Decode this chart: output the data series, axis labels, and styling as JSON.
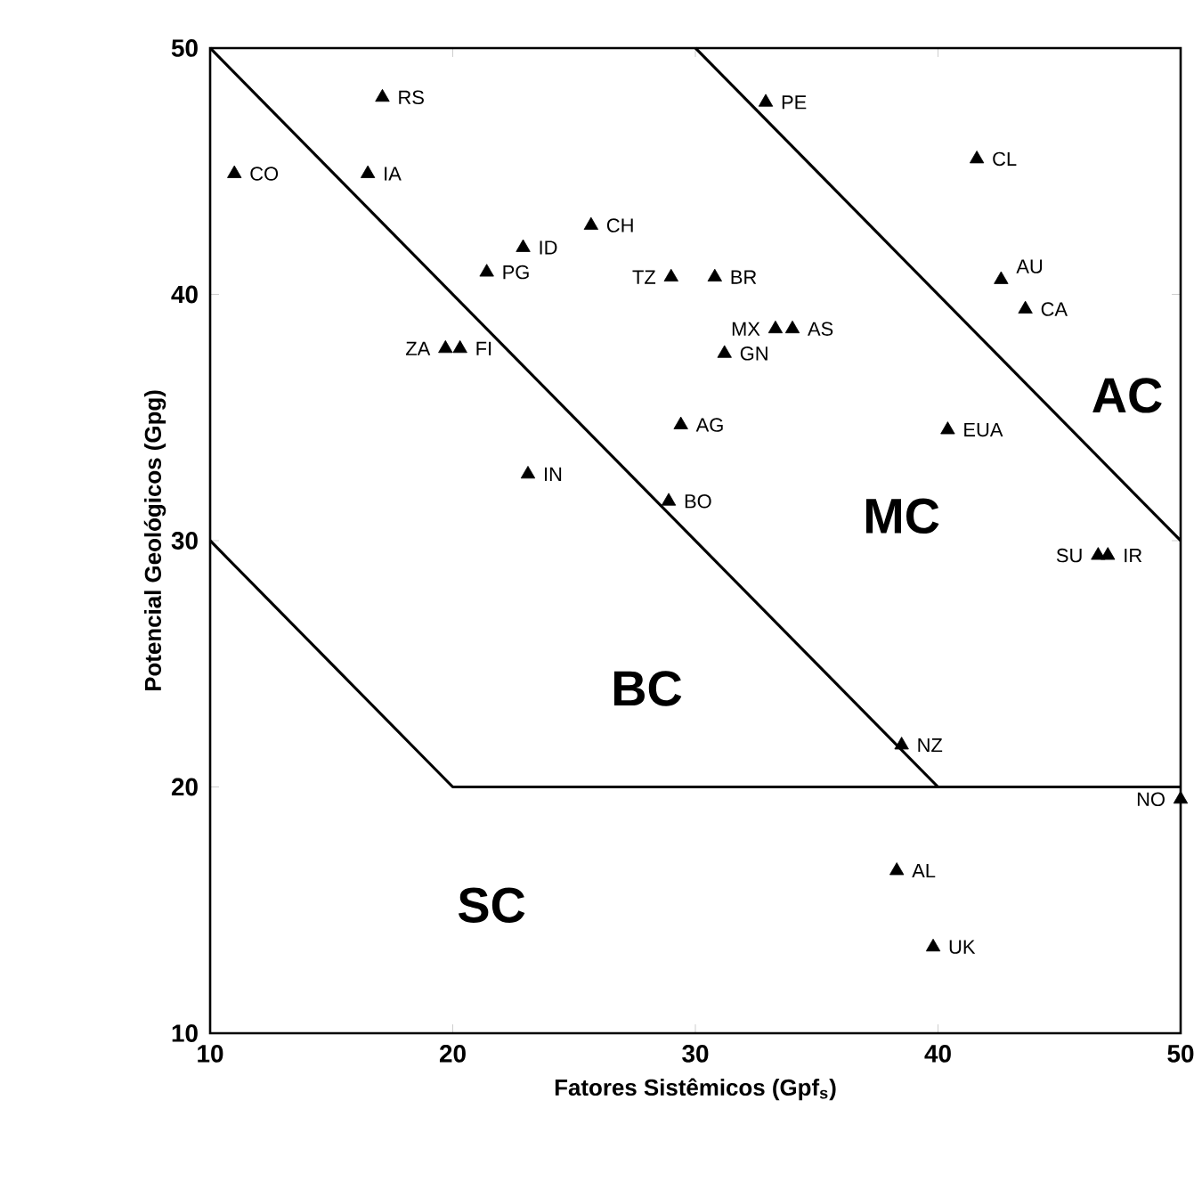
{
  "chart_data": {
    "type": "scatter",
    "xlabel": "Fatores Sistêmicos (Gpf$_{s}$)",
    "ylabel": "Potencial Geológicos (Gpg)",
    "xlim": [
      10,
      50
    ],
    "ylim": [
      10,
      50
    ],
    "xticks": [
      10,
      20,
      30,
      40,
      50
    ],
    "yticks": [
      10,
      20,
      30,
      40,
      50
    ],
    "grid": false,
    "series": [
      {
        "color": "#000000",
        "marker": "triangle",
        "x": [
          17.1,
          11.0,
          16.5,
          25.7,
          22.9,
          21.4,
          29.0,
          30.8,
          33.3,
          34.0,
          31.2,
          19.7,
          20.3,
          29.4,
          23.1,
          28.9,
          32.9,
          41.6,
          42.6,
          43.6,
          40.4,
          46.6,
          47.0,
          38.5,
          50.0,
          38.3,
          39.8
        ],
        "values": [
          48.0,
          44.9,
          44.9,
          42.8,
          41.9,
          40.9,
          40.7,
          40.7,
          38.6,
          38.6,
          37.6,
          37.8,
          37.8,
          34.7,
          32.7,
          31.6,
          47.8,
          45.5,
          40.6,
          39.4,
          34.5,
          29.4,
          29.4,
          21.7,
          19.5,
          16.6,
          13.5
        ],
        "value_labels": [
          "RS",
          "CO",
          "IA",
          "CH",
          "ID",
          "PG",
          "TZ",
          "BR",
          "MX",
          "AS",
          "GN",
          "ZA",
          "FI",
          "AG",
          "IN",
          "BO",
          "PE",
          "CL",
          "AU",
          "CA",
          "EUA",
          "SU",
          "IR",
          "NZ",
          "NO",
          "AL",
          "UK"
        ]
      },
      {
        "type": "line",
        "color": "#000000",
        "marker": "none",
        "line_style": "solid",
        "x": [
          10,
          40
        ],
        "values": [
          50,
          20
        ]
      },
      {
        "type": "line",
        "color": "#000000",
        "marker": "none",
        "line_style": "solid",
        "x": [
          30,
          50
        ],
        "values": [
          50,
          30
        ]
      },
      {
        "type": "line",
        "color": "#000000",
        "marker": "none",
        "line_style": "solid",
        "x": [
          10,
          20,
          50
        ],
        "values": [
          30,
          20,
          20
        ]
      }
    ],
    "annotations": [
      "AC",
      "MC",
      "BC",
      "SC"
    ]
  }
}
